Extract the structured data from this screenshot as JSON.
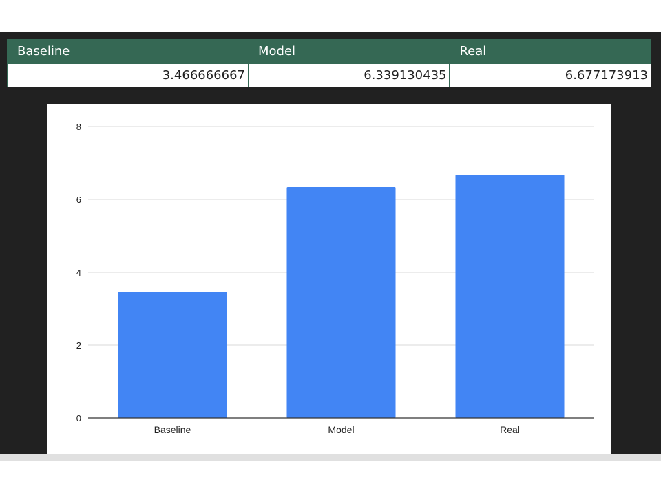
{
  "table": {
    "headers": [
      "Baseline",
      "Model",
      "Real"
    ],
    "row": [
      "3.466666667",
      "6.339130435",
      "6.677173913"
    ]
  },
  "colors": {
    "header_bg": "#356854",
    "bar": "#4285f4",
    "panel_bg": "#212121"
  },
  "chart_data": {
    "type": "bar",
    "categories": [
      "Baseline",
      "Model",
      "Real"
    ],
    "values": [
      3.466666667,
      6.339130435,
      6.677173913
    ],
    "title": "",
    "xlabel": "",
    "ylabel": "",
    "ylim": [
      0,
      8
    ],
    "yticks": [
      "0",
      "2",
      "4",
      "6",
      "8"
    ],
    "grid": true,
    "legend": "none"
  }
}
